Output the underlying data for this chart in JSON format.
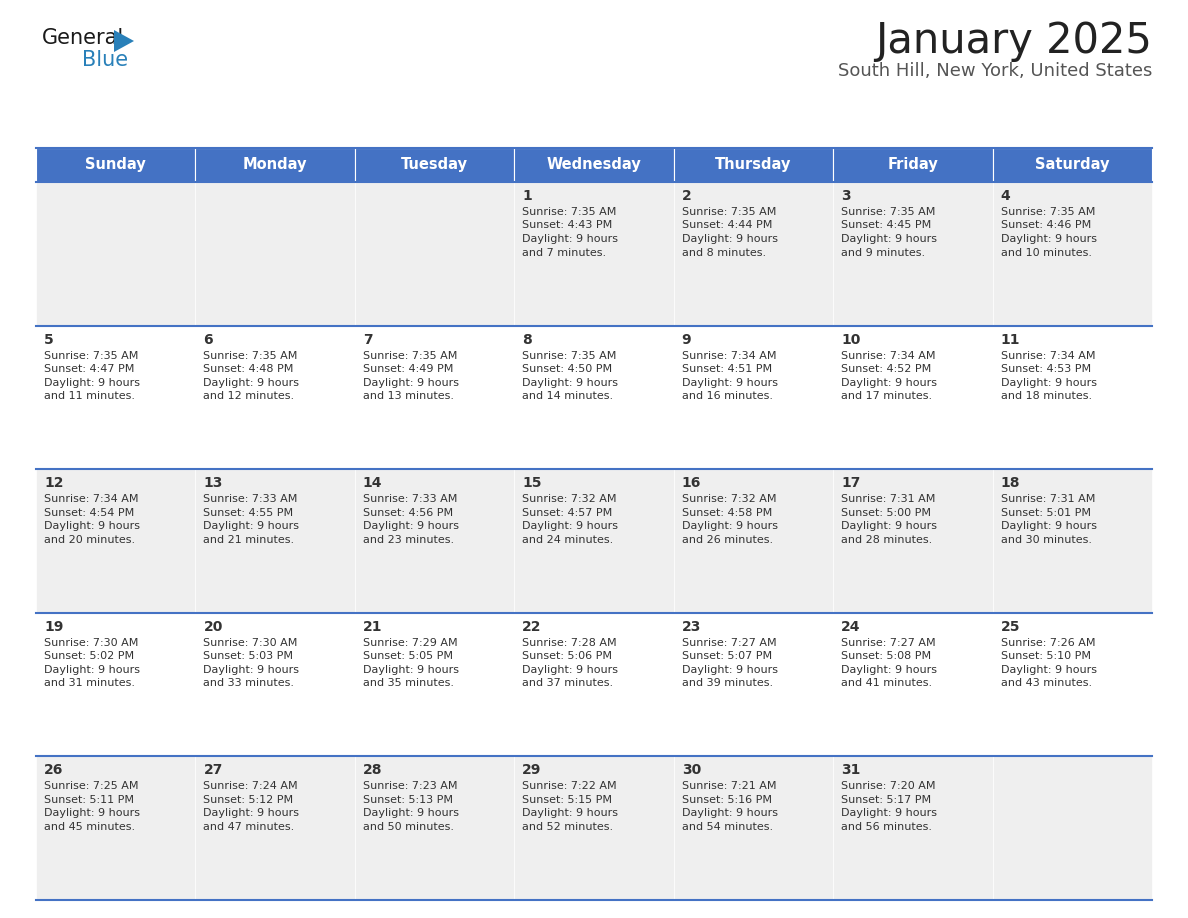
{
  "title": "January 2025",
  "subtitle": "South Hill, New York, United States",
  "header_color": "#4472C4",
  "header_text_color": "#FFFFFF",
  "day_names": [
    "Sunday",
    "Monday",
    "Tuesday",
    "Wednesday",
    "Thursday",
    "Friday",
    "Saturday"
  ],
  "title_color": "#222222",
  "subtitle_color": "#555555",
  "cell_bg_week1": "#EFEFEF",
  "cell_bg_week2": "#FFFFFF",
  "cell_bg_week3": "#EFEFEF",
  "cell_bg_week4": "#FFFFFF",
  "cell_bg_week5": "#EFEFEF",
  "separator_color": "#4472C4",
  "text_color": "#333333",
  "logo_general_color": "#1a1a1a",
  "logo_blue_color": "#2980B9",
  "day_num_fontsize": 10,
  "cell_text_fontsize": 8,
  "header_fontsize": 10.5,
  "title_fontsize": 30,
  "subtitle_fontsize": 13,
  "weeks": [
    [
      {
        "day": null,
        "sunrise": null,
        "sunset": null,
        "daylight_line1": null,
        "daylight_line2": null
      },
      {
        "day": null,
        "sunrise": null,
        "sunset": null,
        "daylight_line1": null,
        "daylight_line2": null
      },
      {
        "day": null,
        "sunrise": null,
        "sunset": null,
        "daylight_line1": null,
        "daylight_line2": null
      },
      {
        "day": "1",
        "sunrise": "Sunrise: 7:35 AM",
        "sunset": "Sunset: 4:43 PM",
        "daylight_line1": "Daylight: 9 hours",
        "daylight_line2": "and 7 minutes."
      },
      {
        "day": "2",
        "sunrise": "Sunrise: 7:35 AM",
        "sunset": "Sunset: 4:44 PM",
        "daylight_line1": "Daylight: 9 hours",
        "daylight_line2": "and 8 minutes."
      },
      {
        "day": "3",
        "sunrise": "Sunrise: 7:35 AM",
        "sunset": "Sunset: 4:45 PM",
        "daylight_line1": "Daylight: 9 hours",
        "daylight_line2": "and 9 minutes."
      },
      {
        "day": "4",
        "sunrise": "Sunrise: 7:35 AM",
        "sunset": "Sunset: 4:46 PM",
        "daylight_line1": "Daylight: 9 hours",
        "daylight_line2": "and 10 minutes."
      }
    ],
    [
      {
        "day": "5",
        "sunrise": "Sunrise: 7:35 AM",
        "sunset": "Sunset: 4:47 PM",
        "daylight_line1": "Daylight: 9 hours",
        "daylight_line2": "and 11 minutes."
      },
      {
        "day": "6",
        "sunrise": "Sunrise: 7:35 AM",
        "sunset": "Sunset: 4:48 PM",
        "daylight_line1": "Daylight: 9 hours",
        "daylight_line2": "and 12 minutes."
      },
      {
        "day": "7",
        "sunrise": "Sunrise: 7:35 AM",
        "sunset": "Sunset: 4:49 PM",
        "daylight_line1": "Daylight: 9 hours",
        "daylight_line2": "and 13 minutes."
      },
      {
        "day": "8",
        "sunrise": "Sunrise: 7:35 AM",
        "sunset": "Sunset: 4:50 PM",
        "daylight_line1": "Daylight: 9 hours",
        "daylight_line2": "and 14 minutes."
      },
      {
        "day": "9",
        "sunrise": "Sunrise: 7:34 AM",
        "sunset": "Sunset: 4:51 PM",
        "daylight_line1": "Daylight: 9 hours",
        "daylight_line2": "and 16 minutes."
      },
      {
        "day": "10",
        "sunrise": "Sunrise: 7:34 AM",
        "sunset": "Sunset: 4:52 PM",
        "daylight_line1": "Daylight: 9 hours",
        "daylight_line2": "and 17 minutes."
      },
      {
        "day": "11",
        "sunrise": "Sunrise: 7:34 AM",
        "sunset": "Sunset: 4:53 PM",
        "daylight_line1": "Daylight: 9 hours",
        "daylight_line2": "and 18 minutes."
      }
    ],
    [
      {
        "day": "12",
        "sunrise": "Sunrise: 7:34 AM",
        "sunset": "Sunset: 4:54 PM",
        "daylight_line1": "Daylight: 9 hours",
        "daylight_line2": "and 20 minutes."
      },
      {
        "day": "13",
        "sunrise": "Sunrise: 7:33 AM",
        "sunset": "Sunset: 4:55 PM",
        "daylight_line1": "Daylight: 9 hours",
        "daylight_line2": "and 21 minutes."
      },
      {
        "day": "14",
        "sunrise": "Sunrise: 7:33 AM",
        "sunset": "Sunset: 4:56 PM",
        "daylight_line1": "Daylight: 9 hours",
        "daylight_line2": "and 23 minutes."
      },
      {
        "day": "15",
        "sunrise": "Sunrise: 7:32 AM",
        "sunset": "Sunset: 4:57 PM",
        "daylight_line1": "Daylight: 9 hours",
        "daylight_line2": "and 24 minutes."
      },
      {
        "day": "16",
        "sunrise": "Sunrise: 7:32 AM",
        "sunset": "Sunset: 4:58 PM",
        "daylight_line1": "Daylight: 9 hours",
        "daylight_line2": "and 26 minutes."
      },
      {
        "day": "17",
        "sunrise": "Sunrise: 7:31 AM",
        "sunset": "Sunset: 5:00 PM",
        "daylight_line1": "Daylight: 9 hours",
        "daylight_line2": "and 28 minutes."
      },
      {
        "day": "18",
        "sunrise": "Sunrise: 7:31 AM",
        "sunset": "Sunset: 5:01 PM",
        "daylight_line1": "Daylight: 9 hours",
        "daylight_line2": "and 30 minutes."
      }
    ],
    [
      {
        "day": "19",
        "sunrise": "Sunrise: 7:30 AM",
        "sunset": "Sunset: 5:02 PM",
        "daylight_line1": "Daylight: 9 hours",
        "daylight_line2": "and 31 minutes."
      },
      {
        "day": "20",
        "sunrise": "Sunrise: 7:30 AM",
        "sunset": "Sunset: 5:03 PM",
        "daylight_line1": "Daylight: 9 hours",
        "daylight_line2": "and 33 minutes."
      },
      {
        "day": "21",
        "sunrise": "Sunrise: 7:29 AM",
        "sunset": "Sunset: 5:05 PM",
        "daylight_line1": "Daylight: 9 hours",
        "daylight_line2": "and 35 minutes."
      },
      {
        "day": "22",
        "sunrise": "Sunrise: 7:28 AM",
        "sunset": "Sunset: 5:06 PM",
        "daylight_line1": "Daylight: 9 hours",
        "daylight_line2": "and 37 minutes."
      },
      {
        "day": "23",
        "sunrise": "Sunrise: 7:27 AM",
        "sunset": "Sunset: 5:07 PM",
        "daylight_line1": "Daylight: 9 hours",
        "daylight_line2": "and 39 minutes."
      },
      {
        "day": "24",
        "sunrise": "Sunrise: 7:27 AM",
        "sunset": "Sunset: 5:08 PM",
        "daylight_line1": "Daylight: 9 hours",
        "daylight_line2": "and 41 minutes."
      },
      {
        "day": "25",
        "sunrise": "Sunrise: 7:26 AM",
        "sunset": "Sunset: 5:10 PM",
        "daylight_line1": "Daylight: 9 hours",
        "daylight_line2": "and 43 minutes."
      }
    ],
    [
      {
        "day": "26",
        "sunrise": "Sunrise: 7:25 AM",
        "sunset": "Sunset: 5:11 PM",
        "daylight_line1": "Daylight: 9 hours",
        "daylight_line2": "and 45 minutes."
      },
      {
        "day": "27",
        "sunrise": "Sunrise: 7:24 AM",
        "sunset": "Sunset: 5:12 PM",
        "daylight_line1": "Daylight: 9 hours",
        "daylight_line2": "and 47 minutes."
      },
      {
        "day": "28",
        "sunrise": "Sunrise: 7:23 AM",
        "sunset": "Sunset: 5:13 PM",
        "daylight_line1": "Daylight: 9 hours",
        "daylight_line2": "and 50 minutes."
      },
      {
        "day": "29",
        "sunrise": "Sunrise: 7:22 AM",
        "sunset": "Sunset: 5:15 PM",
        "daylight_line1": "Daylight: 9 hours",
        "daylight_line2": "and 52 minutes."
      },
      {
        "day": "30",
        "sunrise": "Sunrise: 7:21 AM",
        "sunset": "Sunset: 5:16 PM",
        "daylight_line1": "Daylight: 9 hours",
        "daylight_line2": "and 54 minutes."
      },
      {
        "day": "31",
        "sunrise": "Sunrise: 7:20 AM",
        "sunset": "Sunset: 5:17 PM",
        "daylight_line1": "Daylight: 9 hours",
        "daylight_line2": "and 56 minutes."
      },
      {
        "day": null,
        "sunrise": null,
        "sunset": null,
        "daylight_line1": null,
        "daylight_line2": null
      }
    ]
  ]
}
